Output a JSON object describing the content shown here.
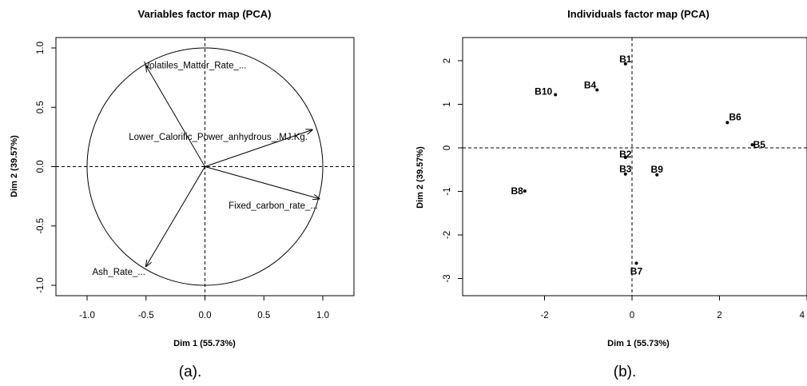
{
  "captions": [
    "(a).",
    "(b)."
  ],
  "chart_data": [
    {
      "type": "scatter",
      "subtype": "pca-variables-correlation-circle",
      "title": "Variables factor map (PCA)",
      "xlabel": "Dim 1 (55.73%)",
      "ylabel": "Dim 2 (39.57%)",
      "xlim": [
        -1.25,
        1.25
      ],
      "ylim": [
        -1.1,
        1.1
      ],
      "xticks": [
        -1.0,
        -0.5,
        0.0,
        0.5,
        1.0
      ],
      "xtick_labels": [
        "-1.0",
        "-0.5",
        "0.0",
        "0.5",
        "1.0"
      ],
      "yticks": [
        -1.0,
        -0.5,
        0.0,
        0.5,
        1.0
      ],
      "ytick_labels": [
        "-1.0",
        "-0.5",
        "0.0",
        "0.5",
        "1.0"
      ],
      "unit_circle": true,
      "reference_lines": {
        "x": 0,
        "y": 0,
        "style": "dashed"
      },
      "vectors": [
        {
          "name": "Volatiles_Matter_Rate_...",
          "x": -0.5,
          "y": 0.85
        },
        {
          "name": "Lower_Calorific_Power_anhydrous_.MJ.Kg.",
          "x": 0.91,
          "y": 0.31
        },
        {
          "name": "Fixed_carbon_rate_...",
          "x": 0.97,
          "y": -0.27
        },
        {
          "name": "Ash_Rate_...",
          "x": -0.5,
          "y": -0.84
        }
      ]
    },
    {
      "type": "scatter",
      "subtype": "pca-individuals-map",
      "title": "Individuals factor map (PCA)",
      "xlabel": "Dim 1 (55.73%)",
      "ylabel": "Dim 2 (39.57%)",
      "xlim": [
        -3.8,
        4.0
      ],
      "ylim": [
        -3.4,
        2.5
      ],
      "xticks": [
        -2,
        0,
        2,
        4
      ],
      "xtick_labels": [
        "-2",
        "0",
        "2",
        "4"
      ],
      "yticks": [
        -3,
        -2,
        -1,
        0,
        1,
        2
      ],
      "ytick_labels": [
        "-3",
        "-2",
        "-1",
        "0",
        "1",
        "2"
      ],
      "reference_lines": {
        "x": 0,
        "y": 0,
        "style": "dashed"
      },
      "points": [
        {
          "label": "B1",
          "x": -0.15,
          "y": 1.93
        },
        {
          "label": "B10",
          "x": -1.75,
          "y": 1.22
        },
        {
          "label": "B4",
          "x": -0.8,
          "y": 1.33
        },
        {
          "label": "B6",
          "x": 2.18,
          "y": 0.58
        },
        {
          "label": "B5",
          "x": 2.75,
          "y": 0.07
        },
        {
          "label": "B2",
          "x": -0.15,
          "y": -0.22
        },
        {
          "label": "B3",
          "x": -0.15,
          "y": -0.6
        },
        {
          "label": "B9",
          "x": 0.57,
          "y": -0.62
        },
        {
          "label": "B8",
          "x": -2.45,
          "y": -0.99
        },
        {
          "label": "B7",
          "x": 0.1,
          "y": -2.65
        }
      ]
    }
  ]
}
